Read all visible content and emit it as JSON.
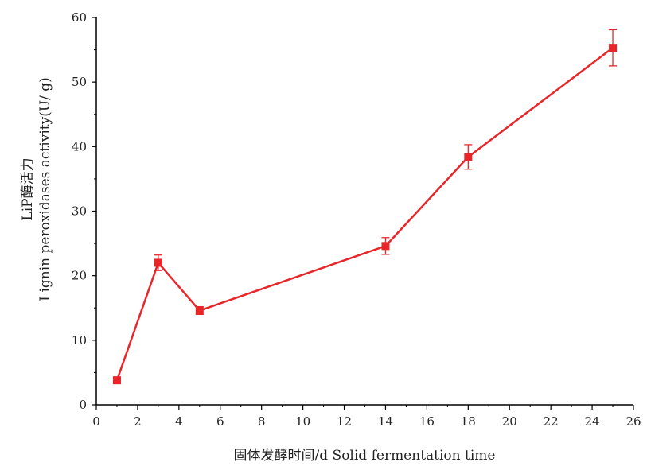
{
  "chart_data": {
    "type": "line",
    "x": [
      1,
      3,
      5,
      14,
      18,
      25
    ],
    "series": [
      {
        "values": [
          3.8,
          22.0,
          14.6,
          24.6,
          38.4,
          55.3
        ],
        "errors": [
          0.3,
          1.2,
          0.6,
          1.3,
          1.9,
          2.8
        ],
        "color": "#e8262a",
        "marker": "square"
      }
    ],
    "xlabel": "固体发酵时间/d Solid fermentation time",
    "ylabel_line1": "LiP酶活力",
    "ylabel_line2": "Lignin peroxidases activity(U/ g)",
    "xlim": [
      0,
      26
    ],
    "ylim": [
      0,
      60
    ],
    "xticks": [
      0,
      2,
      4,
      6,
      8,
      10,
      12,
      14,
      16,
      18,
      20,
      22,
      24,
      26
    ],
    "yticks": [
      0,
      10,
      20,
      30,
      40,
      50,
      60
    ],
    "grid": false,
    "legend": "none"
  }
}
